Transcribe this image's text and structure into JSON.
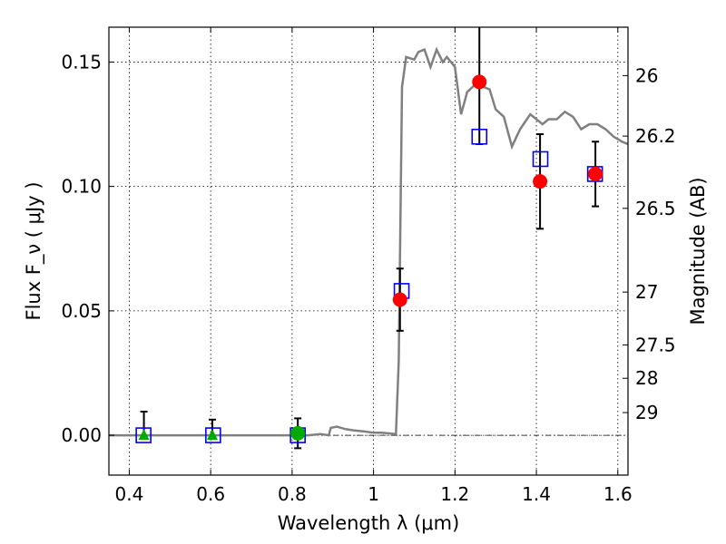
{
  "chart_data": {
    "type": "scatter",
    "xlabel": "Wavelength  λ (μm)",
    "ylabel": "Flux  F_ν  ( μJy )",
    "ylabel_right": "Magnitude (AB)",
    "xlim": [
      0.35,
      1.625
    ],
    "ylim": [
      -0.016,
      0.164
    ],
    "grid": true,
    "x_ticks": [
      0.4,
      0.6,
      0.8,
      1.0,
      1.2,
      1.4,
      1.6
    ],
    "x_tick_labels": [
      "0.4",
      "0.6",
      "0.8",
      "1",
      "1.2",
      "1.4",
      "1.6"
    ],
    "y_ticks": [
      0.0,
      0.05,
      0.1,
      0.15
    ],
    "y_tick_labels": [
      "0.00",
      "0.05",
      "0.10",
      "0.15"
    ],
    "mag_ticks": [
      26,
      26.2,
      26.5,
      27,
      27.5,
      28,
      29
    ],
    "mag_tick_labels": [
      "26",
      "26.2",
      "26.5",
      "27",
      "27.5",
      "28",
      "29"
    ],
    "series": [
      {
        "kind": "line",
        "color": "#808080",
        "x": [
          0.35,
          0.84,
          0.87,
          0.89,
          0.895,
          0.91,
          0.93,
          0.95,
          0.98,
          1.0,
          1.02,
          1.055,
          1.062,
          1.07,
          1.08,
          1.1,
          1.11,
          1.125,
          1.14,
          1.155,
          1.17,
          1.18,
          1.2,
          1.215,
          1.23,
          1.25,
          1.27,
          1.285,
          1.3,
          1.32,
          1.34,
          1.36,
          1.385,
          1.4,
          1.415,
          1.43,
          1.45,
          1.47,
          1.49,
          1.51,
          1.53,
          1.55,
          1.57,
          1.59,
          1.61,
          1.625
        ],
        "y": [
          0.0,
          0.0,
          0.0005,
          0.0,
          0.003,
          0.0035,
          0.0025,
          0.002,
          0.0015,
          0.001,
          0.001,
          0.0005,
          0.03,
          0.14,
          0.152,
          0.151,
          0.154,
          0.155,
          0.148,
          0.155,
          0.15,
          0.152,
          0.148,
          0.129,
          0.138,
          0.141,
          0.14,
          0.139,
          0.131,
          0.128,
          0.116,
          0.123,
          0.129,
          0.127,
          0.125,
          0.127,
          0.127,
          0.13,
          0.128,
          0.123,
          0.125,
          0.125,
          0.123,
          0.12,
          0.118,
          0.117
        ]
      },
      {
        "kind": "model_squares",
        "color": "#0000ff",
        "x": [
          0.435,
          0.606,
          0.814,
          1.069,
          1.26,
          1.41,
          1.544
        ],
        "y": [
          0.0,
          0.0,
          0.0,
          0.058,
          0.12,
          0.111,
          0.105
        ]
      },
      {
        "kind": "detections",
        "color": "#ff0000",
        "x": [
          1.065,
          1.26,
          1.409,
          1.545
        ],
        "y": [
          0.0545,
          0.142,
          0.102,
          0.105
        ],
        "err_low": [
          0.0125,
          0.025,
          0.019,
          0.013
        ],
        "err_high": [
          0.0125,
          0.025,
          0.019,
          0.013
        ]
      },
      {
        "kind": "upper_limits",
        "color": "#00aa00",
        "marker": "triangle",
        "x": [
          0.436,
          0.604
        ],
        "y": [
          0.0,
          0.0
        ],
        "err_low": [
          0.0,
          0.0
        ],
        "err_high": [
          0.0095,
          0.0063
        ]
      },
      {
        "kind": "marginal",
        "color": "#00aa00",
        "marker": "circle",
        "x": [
          0.814
        ],
        "y": [
          0.0008
        ],
        "err_low": [
          0.006
        ],
        "err_high": [
          0.006
        ]
      }
    ]
  }
}
